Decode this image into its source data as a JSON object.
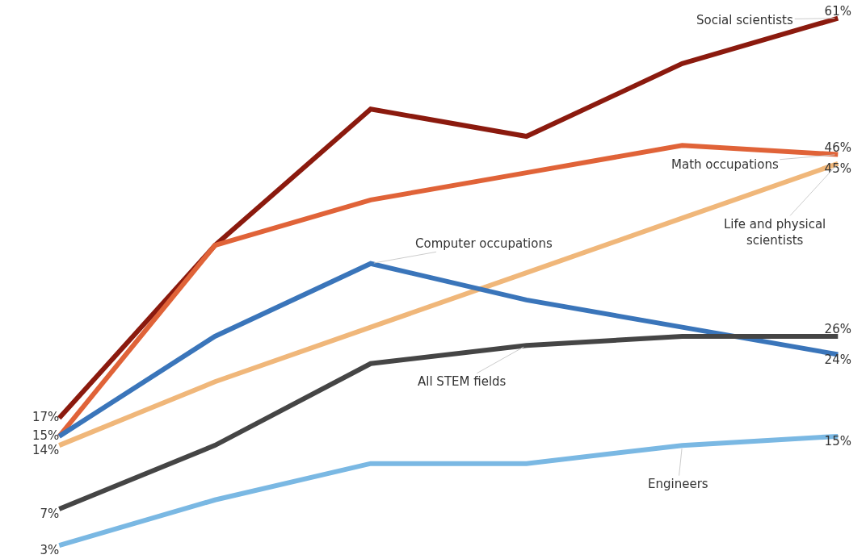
{
  "chart_data": {
    "type": "line",
    "categories": [
      null,
      null,
      null,
      null,
      null,
      null
    ],
    "ylim": [
      1.5,
      63
    ],
    "legend": false,
    "marker": "none",
    "line_style": "solid",
    "tick_labels": false,
    "series": [
      {
        "name": "Social scientists",
        "color": "#8b1a0e",
        "values": [
          17,
          36,
          51,
          48,
          56,
          61
        ],
        "value_labels": [
          "17%",
          null,
          null,
          null,
          null,
          "61%"
        ]
      },
      {
        "name": "Math occupations",
        "color": "#e06338",
        "values": [
          15,
          36,
          41,
          44,
          47,
          46
        ],
        "value_labels": [
          "15%",
          null,
          null,
          null,
          null,
          "46%"
        ]
      },
      {
        "name": "Life and physical scientists",
        "color": "#f0b77a",
        "values": [
          14,
          21,
          27,
          33,
          39,
          45
        ],
        "value_labels": [
          "14%",
          null,
          null,
          null,
          null,
          "45%"
        ]
      },
      {
        "name": "Computer occupations",
        "color": "#3a75ba",
        "values": [
          15,
          26,
          34,
          30,
          27,
          24
        ],
        "value_labels": [
          null,
          null,
          null,
          null,
          null,
          "24%"
        ]
      },
      {
        "name": "All STEM fields",
        "color": "#454545",
        "values": [
          7,
          14,
          23,
          25,
          26,
          26
        ],
        "value_labels": [
          "7%",
          null,
          null,
          null,
          null,
          "26%"
        ]
      },
      {
        "name": "Engineers",
        "color": "#7ab8e3",
        "values": [
          3,
          8,
          12,
          12,
          14,
          15
        ],
        "value_labels": [
          "3%",
          null,
          null,
          null,
          null,
          "15%"
        ]
      }
    ]
  }
}
